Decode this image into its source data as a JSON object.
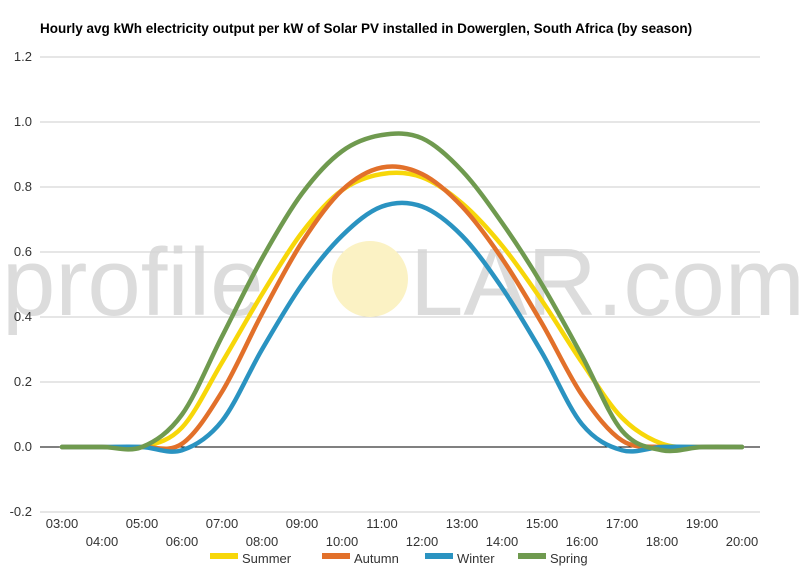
{
  "chart_data": {
    "type": "line",
    "title": "Hourly avg kWh electricity output per kW of Solar PV installed in Dowerglen, South Africa (by season)",
    "xlabel": "",
    "ylabel": "",
    "ylim": [
      -0.2,
      1.2
    ],
    "yticks": [
      "1.2",
      "1.0",
      "0.8",
      "0.6",
      "0.4",
      "0.2",
      "0.0",
      "-0.2"
    ],
    "x": [
      "03:00",
      "04:00",
      "05:00",
      "06:00",
      "07:00",
      "08:00",
      "09:00",
      "10:00",
      "11:00",
      "12:00",
      "13:00",
      "14:00",
      "15:00",
      "16:00",
      "17:00",
      "18:00",
      "19:00",
      "20:00"
    ],
    "grid": true,
    "legend_position": "bottom",
    "series": [
      {
        "name": "Summer",
        "color": "#f7d709",
        "values": [
          0.0,
          0.0,
          0.0,
          0.06,
          0.26,
          0.47,
          0.66,
          0.79,
          0.84,
          0.83,
          0.75,
          0.62,
          0.45,
          0.26,
          0.09,
          0.01,
          0.0,
          0.0
        ]
      },
      {
        "name": "Autumn",
        "color": "#e2702a",
        "values": [
          0.0,
          0.0,
          0.0,
          0.01,
          0.17,
          0.41,
          0.63,
          0.79,
          0.86,
          0.84,
          0.74,
          0.58,
          0.38,
          0.16,
          0.02,
          0.0,
          0.0,
          0.0
        ]
      },
      {
        "name": "Winter",
        "color": "#2a93c1",
        "values": [
          0.0,
          0.0,
          0.0,
          -0.01,
          0.08,
          0.3,
          0.5,
          0.65,
          0.74,
          0.74,
          0.65,
          0.49,
          0.29,
          0.07,
          -0.01,
          0.0,
          0.0,
          0.0
        ]
      },
      {
        "name": "Spring",
        "color": "#6f9a4f",
        "values": [
          0.0,
          0.0,
          0.0,
          0.1,
          0.34,
          0.58,
          0.78,
          0.91,
          0.96,
          0.95,
          0.85,
          0.69,
          0.5,
          0.28,
          0.05,
          -0.01,
          0.0,
          0.0
        ]
      }
    ]
  },
  "watermark": {
    "text_left": "profile",
    "text_right": "LAR.com",
    "sun_color": "#fbf2c4"
  }
}
